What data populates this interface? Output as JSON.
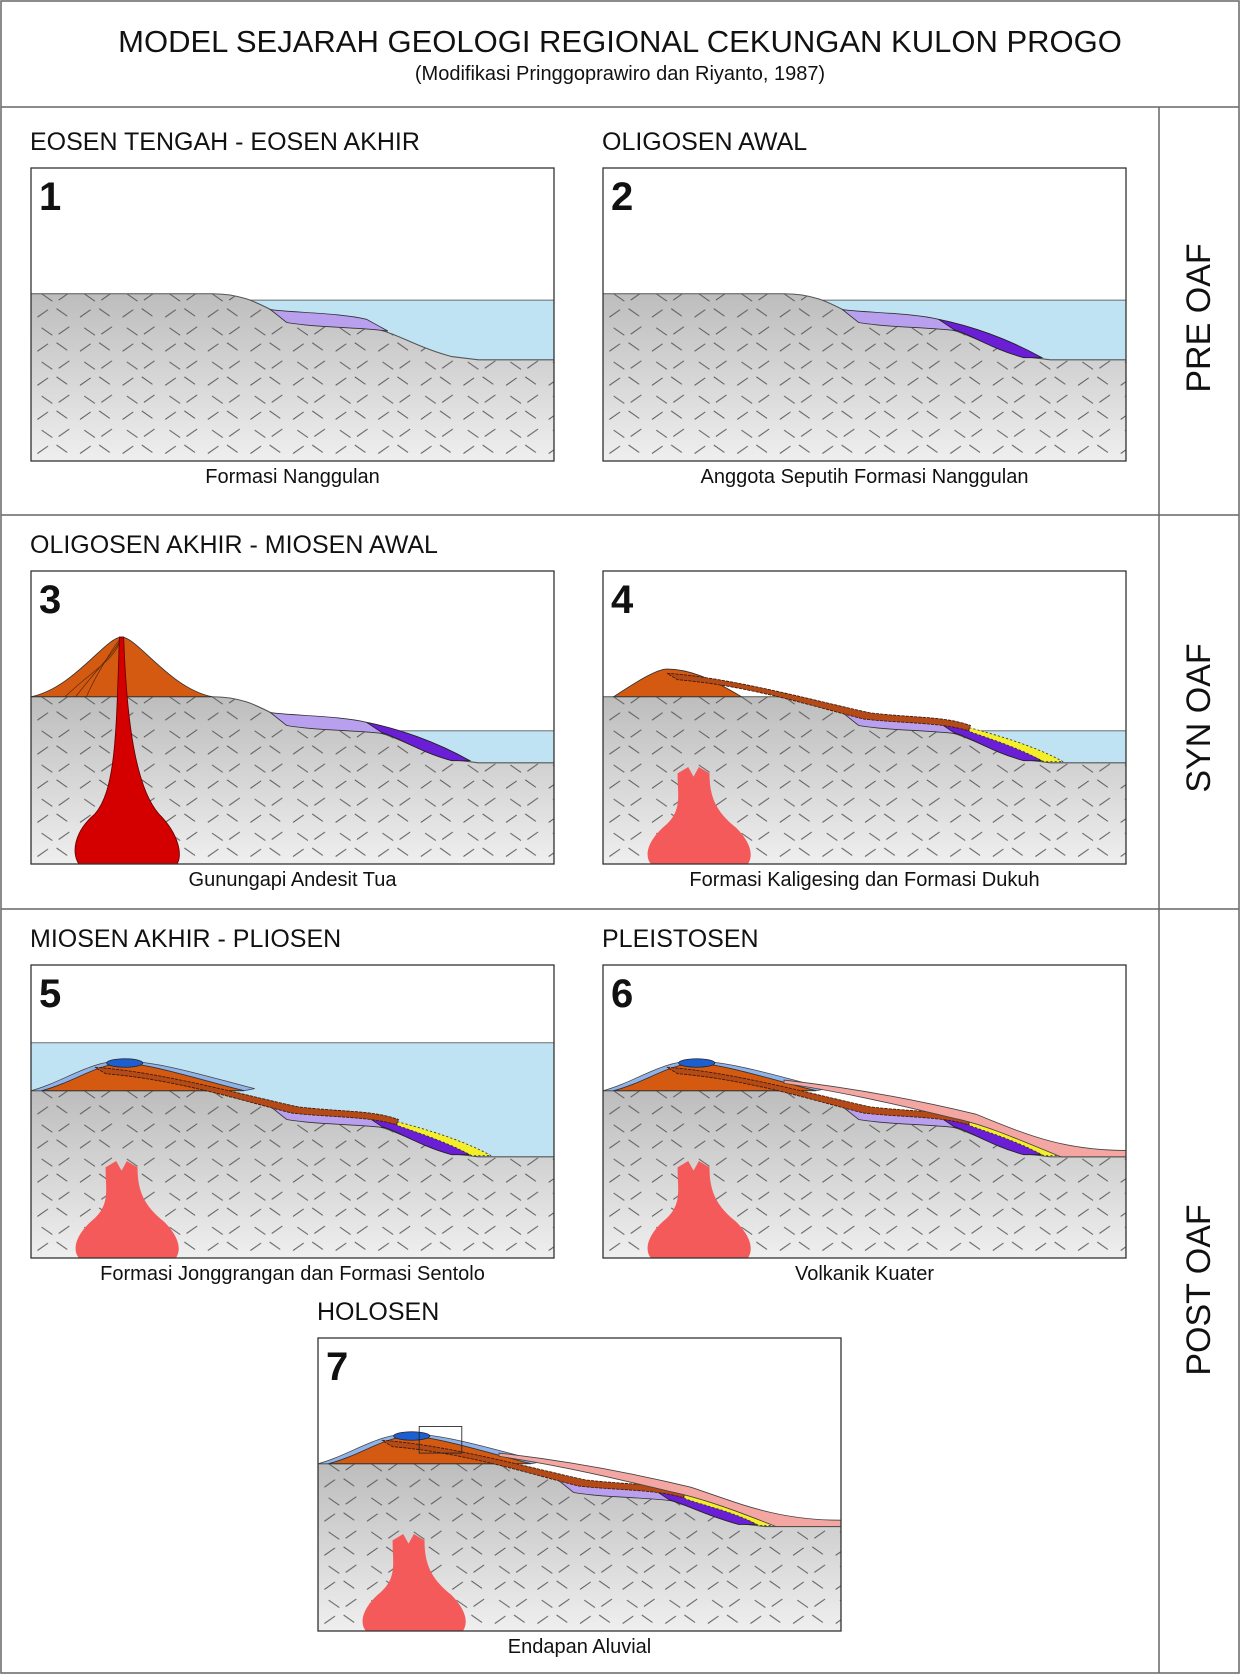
{
  "header": {
    "title": "MODEL SEJARAH GEOLOGI REGIONAL CEKUNGAN KULON PROGO",
    "subtitle": "(Modifikasi Pringgoprawiro dan Riyanto, 1987)"
  },
  "phases": [
    {
      "label": "PRE OAF"
    },
    {
      "label": "SYN OAF"
    },
    {
      "label": "POST OAF"
    }
  ],
  "panels": [
    {
      "number": "1",
      "period": "EOSEN TENGAH - EOSEN AKHIR",
      "caption": "Formasi Nanggulan"
    },
    {
      "number": "2",
      "period": "OLIGOSEN AWAL",
      "caption": "Anggota Seputih Formasi Nanggulan"
    },
    {
      "number": "3",
      "period": "OLIGOSEN AKHIR - MIOSEN AWAL",
      "caption": "Gunungapi Andesit Tua"
    },
    {
      "number": "4",
      "caption": "Formasi Kaligesing dan Formasi Dukuh"
    },
    {
      "number": "5",
      "period": "MIOSEN AKHIR - PLIOSEN",
      "caption": "Formasi Jonggrangan dan Formasi Sentolo"
    },
    {
      "number": "6",
      "period": "PLEISTOSEN",
      "caption": "Volkanik Kuater"
    },
    {
      "number": "7",
      "period": "HOLOSEN",
      "caption": "Endapan Aluvial"
    }
  ]
}
